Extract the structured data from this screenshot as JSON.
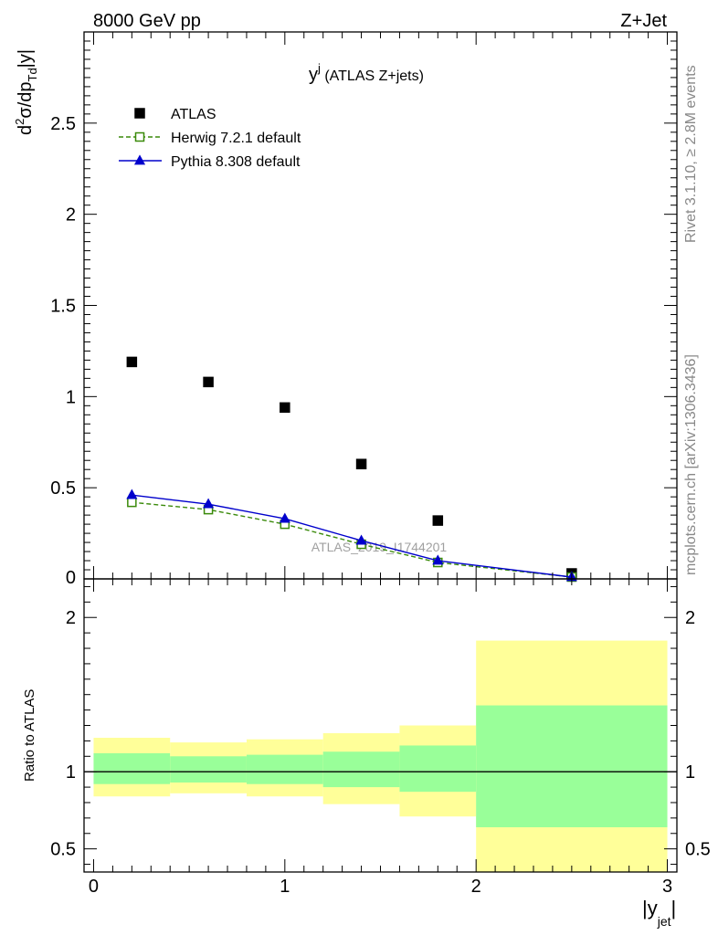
{
  "header": {
    "left": "8000 GeV pp",
    "right": "Z+Jet"
  },
  "plot_title": {
    "main": "y",
    "sup": "j",
    "rest": " (ATLAS Z+jets)"
  },
  "y_axis_label": {
    "d": "d",
    "two": "2",
    "sigma_dp": "σ/dp",
    "Td": "Td",
    "abs_y": "|y|"
  },
  "ratio_y_label": "Ratio to ATLAS",
  "x_axis_label": {
    "bar_open": "|y",
    "sub": "jet",
    "bar_close": "|"
  },
  "side_text": {
    "rivet": "Rivet 3.1.10, ≥ 2.8M events",
    "mcplots": "mcplots.cern.ch [arXiv:1306.3436]"
  },
  "watermark": "ATLAS_2019_I1744201",
  "chart_data": [
    {
      "type": "scatter",
      "xlim": [
        -0.05,
        3.05
      ],
      "ylim": [
        0,
        3.0
      ],
      "yticks_labeled": [
        "0.5",
        "1",
        "1.5",
        "2",
        "2.5"
      ],
      "y_bottom_label": "0",
      "legend_placement": "top-left",
      "series": [
        {
          "name": "ATLAS",
          "style": "markers",
          "color": "#000000",
          "marker": "filled-square",
          "x": [
            0.2,
            0.6,
            1.0,
            1.4,
            1.8,
            2.5
          ],
          "y": [
            1.19,
            1.08,
            0.94,
            0.63,
            0.32,
            0.03
          ]
        },
        {
          "name": "Herwig 7.2.1 default",
          "style": "dashed-line",
          "color": "#3a8a0a",
          "marker": "open-square",
          "x": [
            0.2,
            0.6,
            1.0,
            1.4,
            1.8,
            2.5
          ],
          "y": [
            0.42,
            0.38,
            0.3,
            0.19,
            0.09,
            0.01
          ]
        },
        {
          "name": "Pythia 8.308 default",
          "style": "solid-line",
          "color": "#0000cc",
          "marker": "filled-triangle",
          "x": [
            0.2,
            0.6,
            1.0,
            1.4,
            1.8,
            2.5
          ],
          "y": [
            0.46,
            0.41,
            0.33,
            0.21,
            0.1,
            0.01
          ]
        }
      ]
    },
    {
      "type": "area",
      "ylabel": "Ratio to ATLAS",
      "xlabel": "|y_jet|",
      "xlim": [
        -0.05,
        3.05
      ],
      "ylim": [
        0.35,
        2.25
      ],
      "xticks": [
        "0",
        "1",
        "2",
        "3"
      ],
      "yticks": [
        "0.5",
        "1",
        "2"
      ],
      "reference_line": 1.0,
      "colors": {
        "stat_band": "#99ff99",
        "total_band": "#ffff99"
      },
      "bins": [
        {
          "lo": 0.0,
          "hi": 0.4,
          "total": [
            0.84,
            1.22
          ],
          "stat": [
            0.92,
            1.12
          ]
        },
        {
          "lo": 0.4,
          "hi": 0.8,
          "total": [
            0.86,
            1.19
          ],
          "stat": [
            0.93,
            1.1
          ]
        },
        {
          "lo": 0.8,
          "hi": 1.2,
          "total": [
            0.84,
            1.21
          ],
          "stat": [
            0.92,
            1.11
          ]
        },
        {
          "lo": 1.2,
          "hi": 1.6,
          "total": [
            0.79,
            1.25
          ],
          "stat": [
            0.9,
            1.13
          ]
        },
        {
          "lo": 1.6,
          "hi": 2.0,
          "total": [
            0.71,
            1.3
          ],
          "stat": [
            0.87,
            1.17
          ]
        },
        {
          "lo": 2.0,
          "hi": 3.0,
          "total": [
            0.35,
            1.85
          ],
          "stat": [
            0.64,
            1.43
          ]
        }
      ]
    }
  ]
}
